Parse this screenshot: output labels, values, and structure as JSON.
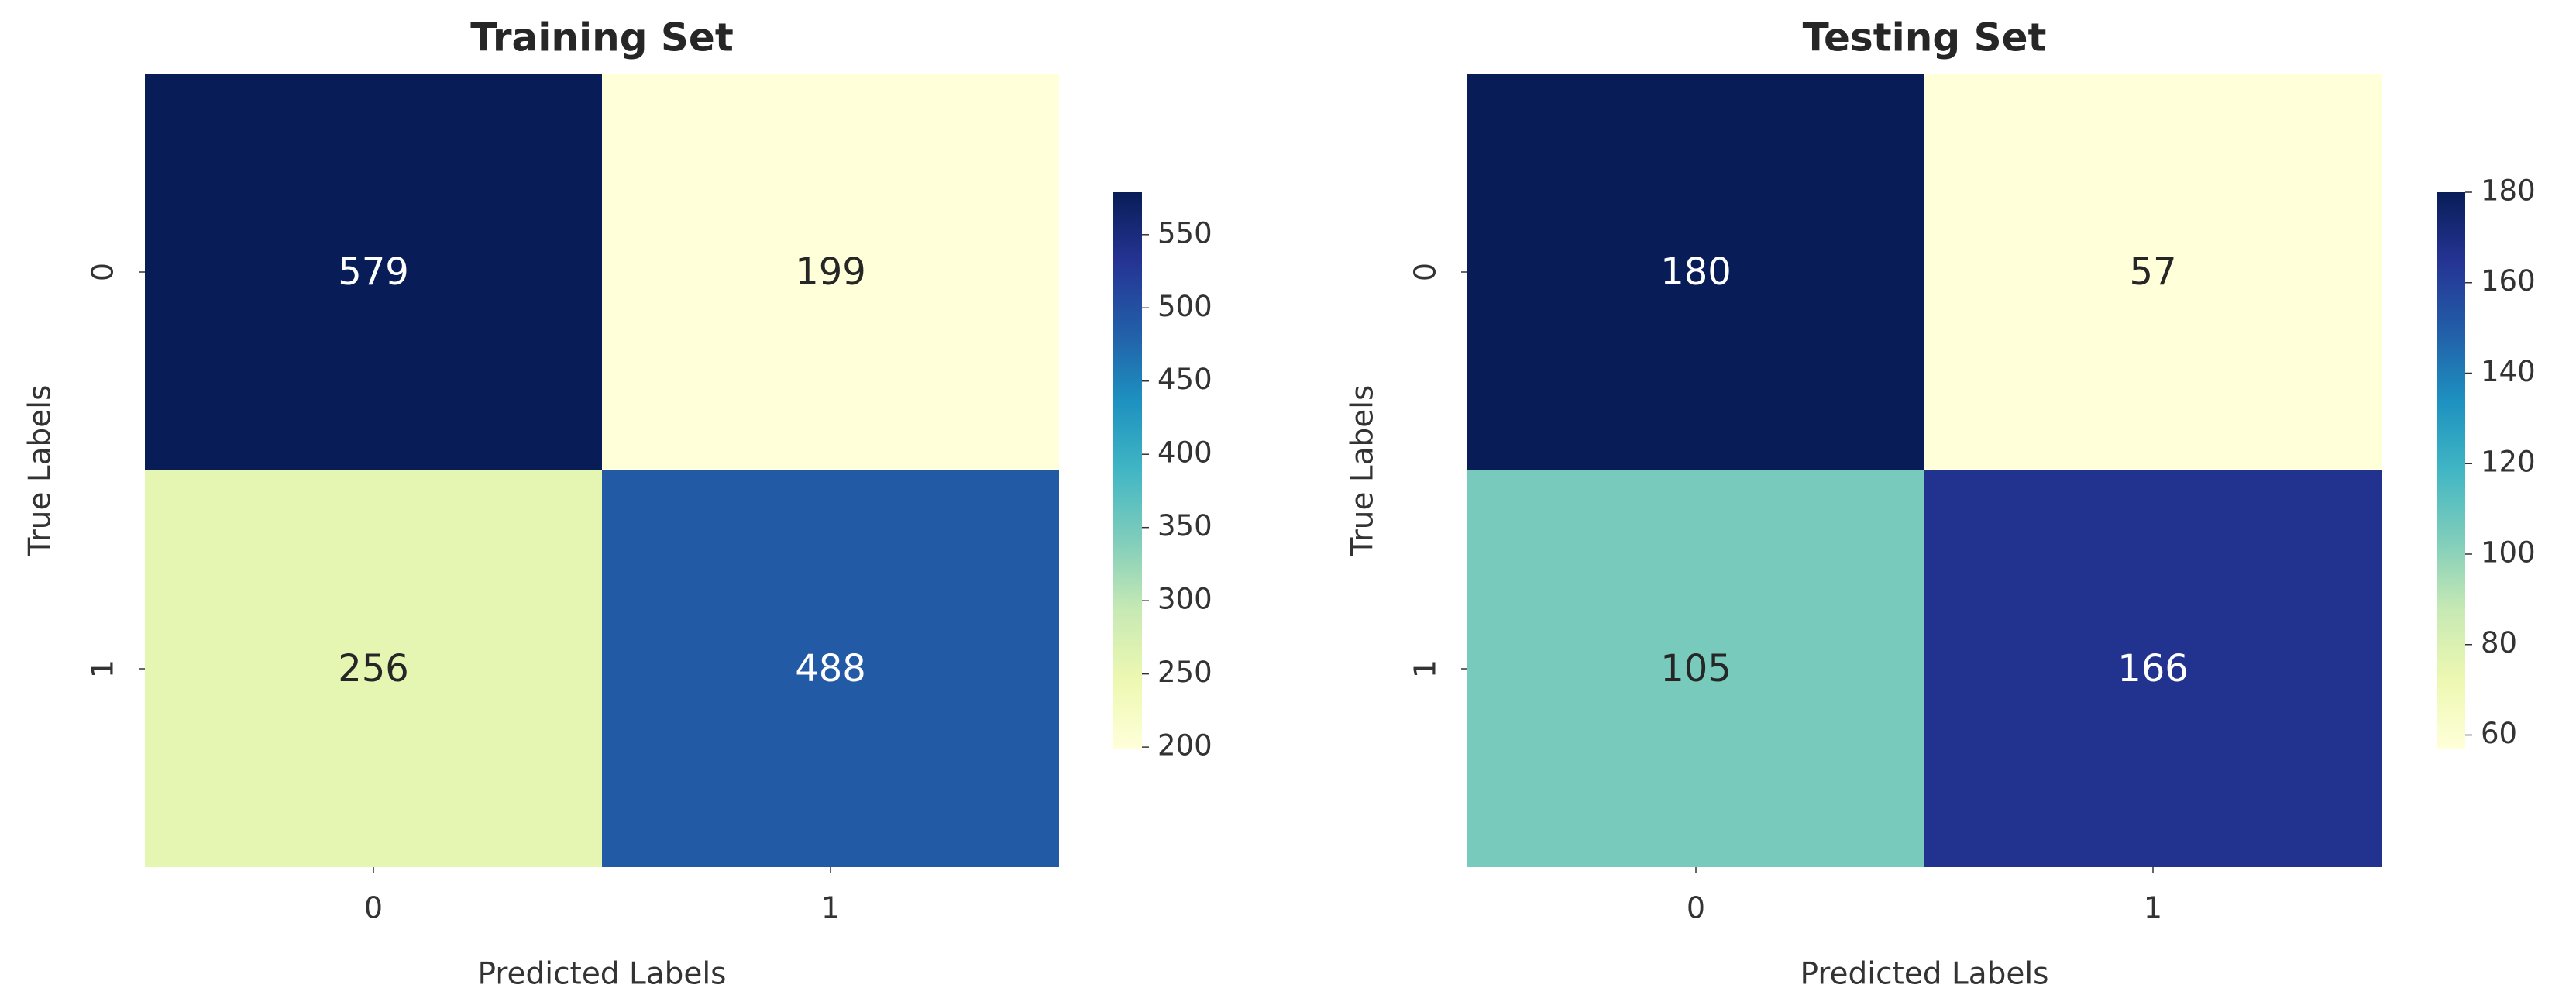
{
  "chart_data": [
    {
      "type": "heatmap",
      "title": "Training Set",
      "xlabel": "Predicted Labels",
      "ylabel": "True Labels",
      "x_categories": [
        "0",
        "1"
      ],
      "y_categories": [
        "0",
        "1"
      ],
      "values": [
        [
          579,
          199
        ],
        [
          256,
          488
        ]
      ],
      "colormap": "YlGnBu",
      "colorbar": {
        "range": [
          199,
          579
        ],
        "ticks": [
          200,
          250,
          300,
          350,
          400,
          450,
          500,
          550
        ]
      }
    },
    {
      "type": "heatmap",
      "title": "Testing Set",
      "xlabel": "Predicted Labels",
      "ylabel": "True Labels",
      "x_categories": [
        "0",
        "1"
      ],
      "y_categories": [
        "0",
        "1"
      ],
      "values": [
        [
          180,
          57
        ],
        [
          105,
          166
        ]
      ],
      "colormap": "YlGnBu",
      "colorbar": {
        "range": [
          57,
          180
        ],
        "ticks": [
          60,
          80,
          100,
          120,
          140,
          160,
          180
        ]
      }
    }
  ],
  "colors": {
    "colormap_stops": [
      "#ffffd9",
      "#edf8b1",
      "#c7e9b4",
      "#7fcdbb",
      "#41b6c4",
      "#1d91c0",
      "#225ea8",
      "#253494",
      "#081d58"
    ],
    "text_dark": "#262626",
    "text_light": "#ffffff",
    "tick_mark": "#333333"
  }
}
